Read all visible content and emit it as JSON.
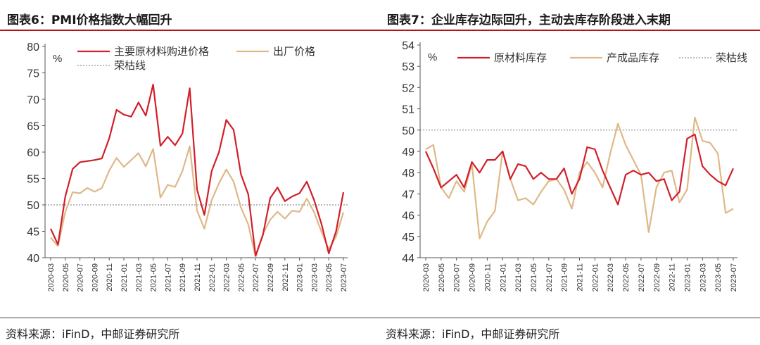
{
  "footer": {
    "source_left": "资料来源：iFinD，中邮证券研究所",
    "source_right": "资料来源：iFinD，中邮证券研究所"
  },
  "colors": {
    "red": "#d11f2a",
    "tan": "#dfb887",
    "threshold": "#777777",
    "accent_rule": "#b5121b"
  },
  "chart_data": [
    {
      "type": "line",
      "title": "图表6：PMI价格指数大幅回升",
      "unit": "%",
      "ylim": [
        40,
        80
      ],
      "yticks": [
        40,
        45,
        50,
        55,
        60,
        65,
        70,
        75,
        80
      ],
      "x": [
        "2020-03",
        "2020-04",
        "2020-05",
        "2020-06",
        "2020-07",
        "2020-08",
        "2020-09",
        "2020-10",
        "2020-11",
        "2020-12",
        "2021-01",
        "2021-02",
        "2021-03",
        "2021-04",
        "2021-05",
        "2021-06",
        "2021-07",
        "2021-08",
        "2021-09",
        "2021-10",
        "2021-11",
        "2021-12",
        "2022-01",
        "2022-02",
        "2022-03",
        "2022-04",
        "2022-05",
        "2022-06",
        "2022-07",
        "2022-08",
        "2022-09",
        "2022-10",
        "2022-11",
        "2022-12",
        "2023-01",
        "2023-02",
        "2023-03",
        "2023-04",
        "2023-05",
        "2023-06",
        "2023-07"
      ],
      "xtick_labels": [
        "2020-03",
        "2020-05",
        "2020-07",
        "2020-09",
        "2020-11",
        "2021-01",
        "2021-03",
        "2021-05",
        "2021-07",
        "2021-09",
        "2021-11",
        "2022-01",
        "2022-03",
        "2022-05",
        "2022-07",
        "2022-09",
        "2022-11",
        "2023-01",
        "2023-03",
        "2023-05",
        "2023-07"
      ],
      "legend_position": "top",
      "series": [
        {
          "name": "主要原材料购进价格",
          "color": "#d11f2a",
          "values": [
            45.5,
            42.5,
            51.6,
            56.8,
            58.1,
            58.3,
            58.5,
            58.8,
            62.6,
            68.0,
            67.1,
            66.7,
            69.4,
            66.9,
            72.8,
            61.2,
            62.9,
            61.3,
            63.5,
            72.1,
            52.9,
            48.1,
            56.4,
            60.0,
            66.1,
            64.2,
            55.8,
            52.0,
            40.4,
            44.3,
            51.3,
            53.3,
            50.7,
            51.6,
            52.2,
            54.4,
            50.9,
            46.4,
            40.8,
            45.0,
            52.4
          ]
        },
        {
          "name": "出厂价格",
          "color": "#dfb887",
          "values": [
            43.8,
            42.2,
            48.7,
            52.4,
            52.2,
            53.2,
            52.5,
            53.2,
            56.5,
            58.9,
            57.2,
            58.5,
            59.8,
            57.3,
            60.6,
            51.4,
            53.8,
            53.4,
            56.4,
            61.1,
            48.9,
            45.5,
            50.9,
            54.1,
            56.7,
            54.4,
            49.5,
            46.3,
            40.1,
            44.5,
            47.2,
            48.7,
            47.4,
            48.9,
            48.7,
            51.2,
            48.6,
            44.9,
            41.6,
            44.0,
            48.6
          ]
        }
      ],
      "reference_line": {
        "name": "荣枯线",
        "value": 50,
        "style": "dotted"
      }
    },
    {
      "type": "line",
      "title": "图表7：企业库存边际回升，主动去库存阶段进入末期",
      "unit": "%",
      "ylim": [
        44,
        54
      ],
      "yticks": [
        44,
        45,
        46,
        47,
        48,
        49,
        50,
        51,
        52,
        53,
        54
      ],
      "x": [
        "2020-03",
        "2020-04",
        "2020-05",
        "2020-06",
        "2020-07",
        "2020-08",
        "2020-09",
        "2020-10",
        "2020-11",
        "2020-12",
        "2021-01",
        "2021-02",
        "2021-03",
        "2021-04",
        "2021-05",
        "2021-06",
        "2021-07",
        "2021-08",
        "2021-09",
        "2021-10",
        "2021-11",
        "2021-12",
        "2022-01",
        "2022-02",
        "2022-03",
        "2022-04",
        "2022-05",
        "2022-06",
        "2022-07",
        "2022-08",
        "2022-09",
        "2022-10",
        "2022-11",
        "2022-12",
        "2023-01",
        "2023-02",
        "2023-03",
        "2023-04",
        "2023-05",
        "2023-06",
        "2023-07"
      ],
      "xtick_labels": [
        "2020-03",
        "2020-05",
        "2020-07",
        "2020-09",
        "2020-11",
        "2021-01",
        "2021-03",
        "2021-05",
        "2021-07",
        "2021-09",
        "2021-11",
        "2022-01",
        "2022-03",
        "2022-05",
        "2022-07",
        "2022-09",
        "2022-11",
        "2023-01",
        "2023-03",
        "2023-05",
        "2023-07"
      ],
      "legend_position": "top",
      "series": [
        {
          "name": "原材料库存",
          "color": "#d11f2a",
          "values": [
            49.0,
            48.2,
            47.3,
            47.6,
            47.9,
            47.3,
            48.5,
            48.0,
            48.6,
            48.6,
            49.0,
            47.7,
            48.4,
            48.3,
            47.7,
            48.0,
            47.7,
            47.7,
            48.2,
            47.0,
            47.7,
            49.2,
            49.1,
            48.1,
            47.3,
            46.5,
            47.9,
            48.1,
            47.9,
            48.0,
            47.6,
            47.7,
            46.7,
            47.1,
            49.6,
            49.8,
            48.3,
            47.9,
            47.6,
            47.4,
            48.2
          ]
        },
        {
          "name": "产成品库存",
          "color": "#dfb887",
          "values": [
            49.1,
            49.3,
            47.3,
            46.8,
            47.6,
            47.1,
            48.4,
            44.9,
            45.7,
            46.2,
            49.0,
            47.7,
            46.7,
            46.8,
            46.5,
            47.1,
            47.6,
            47.7,
            47.2,
            46.3,
            48.0,
            48.5,
            48.0,
            47.3,
            48.9,
            50.3,
            49.3,
            48.6,
            47.9,
            45.2,
            47.3,
            48.0,
            48.1,
            46.6,
            47.2,
            50.6,
            49.5,
            49.4,
            48.9,
            46.1,
            46.3
          ]
        }
      ],
      "reference_line": {
        "name": "荣枯线",
        "value": 50,
        "style": "dotted"
      }
    }
  ]
}
